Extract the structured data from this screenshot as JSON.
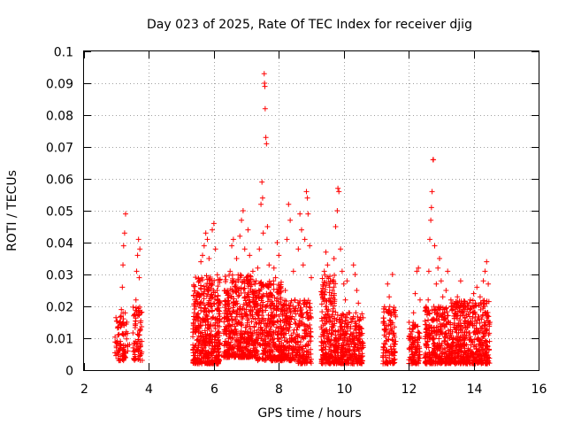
{
  "chart_data": {
    "type": "scatter",
    "title": "Day 023 of 2025, Rate Of TEC Index for receiver djig",
    "xlabel": "GPS time / hours",
    "ylabel": "ROTI / TECUs",
    "xlim": [
      2,
      16
    ],
    "ylim": [
      0,
      0.1
    ],
    "x_ticks": [
      2,
      4,
      6,
      8,
      10,
      12,
      14,
      16
    ],
    "x_tick_labels": [
      "2",
      "4",
      "6",
      "8",
      "10",
      "12",
      "14",
      "16"
    ],
    "y_ticks": [
      0,
      0.01,
      0.02,
      0.03,
      0.04,
      0.05,
      0.06,
      0.07,
      0.08,
      0.09,
      0.1
    ],
    "y_tick_labels": [
      "0",
      "0.01",
      "0.02",
      "0.03",
      "0.04",
      "0.05",
      "0.06",
      "0.07",
      "0.08",
      "0.09",
      "0.1"
    ],
    "grid": true,
    "marker": "+",
    "marker_color": "#ff0000",
    "series": [
      {
        "name": "ROTI",
        "points": [
          [
            3.0,
            0.007
          ],
          [
            3.05,
            0.011
          ],
          [
            3.1,
            0.015
          ],
          [
            3.12,
            0.009
          ],
          [
            3.15,
            0.019
          ],
          [
            3.18,
            0.026
          ],
          [
            3.2,
            0.033
          ],
          [
            3.22,
            0.039
          ],
          [
            3.25,
            0.043
          ],
          [
            3.28,
            0.049
          ],
          [
            3.3,
            0.012
          ],
          [
            3.35,
            0.006
          ],
          [
            3.4,
            0.008
          ],
          [
            3.55,
            0.006
          ],
          [
            3.58,
            0.014
          ],
          [
            3.6,
            0.022
          ],
          [
            3.62,
            0.031
          ],
          [
            3.65,
            0.036
          ],
          [
            3.68,
            0.041
          ],
          [
            3.7,
            0.029
          ],
          [
            3.72,
            0.038
          ],
          [
            3.75,
            0.018
          ],
          [
            3.78,
            0.009
          ],
          [
            5.4,
            0.007
          ],
          [
            5.45,
            0.013
          ],
          [
            5.5,
            0.021
          ],
          [
            5.55,
            0.028
          ],
          [
            5.6,
            0.034
          ],
          [
            5.65,
            0.036
          ],
          [
            5.7,
            0.039
          ],
          [
            5.75,
            0.043
          ],
          [
            5.8,
            0.041
          ],
          [
            5.85,
            0.035
          ],
          [
            5.9,
            0.027
          ],
          [
            5.95,
            0.044
          ],
          [
            6.0,
            0.046
          ],
          [
            6.05,
            0.038
          ],
          [
            6.1,
            0.025
          ],
          [
            6.15,
            0.012
          ],
          [
            6.35,
            0.009
          ],
          [
            6.4,
            0.016
          ],
          [
            6.45,
            0.024
          ],
          [
            6.5,
            0.031
          ],
          [
            6.55,
            0.039
          ],
          [
            6.6,
            0.041
          ],
          [
            6.7,
            0.035
          ],
          [
            6.8,
            0.042
          ],
          [
            6.85,
            0.047
          ],
          [
            6.9,
            0.05
          ],
          [
            6.95,
            0.038
          ],
          [
            7.0,
            0.029
          ],
          [
            7.05,
            0.044
          ],
          [
            7.1,
            0.036
          ],
          [
            7.2,
            0.031
          ],
          [
            7.3,
            0.028
          ],
          [
            7.35,
            0.032
          ],
          [
            7.4,
            0.038
          ],
          [
            7.45,
            0.052
          ],
          [
            7.48,
            0.059
          ],
          [
            7.5,
            0.054
          ],
          [
            7.52,
            0.043
          ],
          [
            7.55,
            0.093
          ],
          [
            7.56,
            0.09
          ],
          [
            7.57,
            0.089
          ],
          [
            7.58,
            0.082
          ],
          [
            7.6,
            0.073
          ],
          [
            7.62,
            0.071
          ],
          [
            7.65,
            0.045
          ],
          [
            7.7,
            0.033
          ],
          [
            7.75,
            0.027
          ],
          [
            7.8,
            0.021
          ],
          [
            7.85,
            0.032
          ],
          [
            7.9,
            0.029
          ],
          [
            7.95,
            0.04
          ],
          [
            8.0,
            0.036
          ],
          [
            8.05,
            0.026
          ],
          [
            8.1,
            0.019
          ],
          [
            8.2,
            0.025
          ],
          [
            8.25,
            0.041
          ],
          [
            8.3,
            0.052
          ],
          [
            8.35,
            0.047
          ],
          [
            8.45,
            0.031
          ],
          [
            8.5,
            0.022
          ],
          [
            8.6,
            0.038
          ],
          [
            8.65,
            0.049
          ],
          [
            8.7,
            0.044
          ],
          [
            8.75,
            0.033
          ],
          [
            8.8,
            0.041
          ],
          [
            8.85,
            0.056
          ],
          [
            8.88,
            0.054
          ],
          [
            8.9,
            0.049
          ],
          [
            8.95,
            0.039
          ],
          [
            9.0,
            0.029
          ],
          [
            9.35,
            0.023
          ],
          [
            9.4,
            0.031
          ],
          [
            9.45,
            0.037
          ],
          [
            9.5,
            0.033
          ],
          [
            9.55,
            0.027
          ],
          [
            9.65,
            0.025
          ],
          [
            9.7,
            0.035
          ],
          [
            9.75,
            0.045
          ],
          [
            9.8,
            0.05
          ],
          [
            9.82,
            0.057
          ],
          [
            9.85,
            0.056
          ],
          [
            9.9,
            0.038
          ],
          [
            9.95,
            0.031
          ],
          [
            10.0,
            0.027
          ],
          [
            10.05,
            0.022
          ],
          [
            10.1,
            0.028
          ],
          [
            10.15,
            0.018
          ],
          [
            10.2,
            0.013
          ],
          [
            10.3,
            0.033
          ],
          [
            10.35,
            0.03
          ],
          [
            10.4,
            0.025
          ],
          [
            10.45,
            0.021
          ],
          [
            10.5,
            0.016
          ],
          [
            10.55,
            0.013
          ],
          [
            11.25,
            0.011
          ],
          [
            11.3,
            0.019
          ],
          [
            11.35,
            0.027
          ],
          [
            11.4,
            0.023
          ],
          [
            11.45,
            0.015
          ],
          [
            11.5,
            0.03
          ],
          [
            11.55,
            0.018
          ],
          [
            11.6,
            0.009
          ],
          [
            12.05,
            0.007
          ],
          [
            12.1,
            0.012
          ],
          [
            12.15,
            0.018
          ],
          [
            12.2,
            0.024
          ],
          [
            12.25,
            0.031
          ],
          [
            12.3,
            0.032
          ],
          [
            12.35,
            0.022
          ],
          [
            12.55,
            0.013
          ],
          [
            12.6,
            0.022
          ],
          [
            12.62,
            0.031
          ],
          [
            12.65,
            0.041
          ],
          [
            12.68,
            0.047
          ],
          [
            12.7,
            0.051
          ],
          [
            12.72,
            0.056
          ],
          [
            12.75,
            0.066
          ],
          [
            12.76,
            0.066
          ],
          [
            12.8,
            0.039
          ],
          [
            12.85,
            0.027
          ],
          [
            12.9,
            0.032
          ],
          [
            12.95,
            0.035
          ],
          [
            13.0,
            0.028
          ],
          [
            13.05,
            0.023
          ],
          [
            13.1,
            0.018
          ],
          [
            13.15,
            0.025
          ],
          [
            13.2,
            0.031
          ],
          [
            13.3,
            0.022
          ],
          [
            13.4,
            0.017
          ],
          [
            13.5,
            0.023
          ],
          [
            13.6,
            0.028
          ],
          [
            13.7,
            0.02
          ],
          [
            13.8,
            0.019
          ],
          [
            13.9,
            0.022
          ],
          [
            14.0,
            0.024
          ],
          [
            14.05,
            0.021
          ],
          [
            14.1,
            0.026
          ],
          [
            14.2,
            0.023
          ],
          [
            14.3,
            0.028
          ],
          [
            14.35,
            0.031
          ],
          [
            14.4,
            0.034
          ],
          [
            14.45,
            0.027
          ],
          [
            14.5,
            0.015
          ]
        ]
      }
    ],
    "dense_bands": [
      {
        "x_start": 2.95,
        "x_end": 3.35,
        "y_min": 0.003,
        "y_max": 0.018,
        "count": 80
      },
      {
        "x_start": 3.5,
        "x_end": 3.8,
        "y_min": 0.003,
        "y_max": 0.02,
        "count": 70
      },
      {
        "x_start": 5.35,
        "x_end": 6.2,
        "y_min": 0.002,
        "y_max": 0.03,
        "count": 450
      },
      {
        "x_start": 6.3,
        "x_end": 7.3,
        "y_min": 0.004,
        "y_max": 0.03,
        "count": 480
      },
      {
        "x_start": 7.3,
        "x_end": 8.1,
        "y_min": 0.003,
        "y_max": 0.028,
        "count": 360
      },
      {
        "x_start": 8.1,
        "x_end": 8.55,
        "y_min": 0.003,
        "y_max": 0.022,
        "count": 160
      },
      {
        "x_start": 8.55,
        "x_end": 9.0,
        "y_min": 0.002,
        "y_max": 0.022,
        "count": 160
      },
      {
        "x_start": 9.3,
        "x_end": 9.75,
        "y_min": 0.002,
        "y_max": 0.03,
        "count": 220
      },
      {
        "x_start": 9.75,
        "x_end": 10.6,
        "y_min": 0.002,
        "y_max": 0.018,
        "count": 300
      },
      {
        "x_start": 11.2,
        "x_end": 11.6,
        "y_min": 0.002,
        "y_max": 0.02,
        "count": 120
      },
      {
        "x_start": 12.0,
        "x_end": 12.35,
        "y_min": 0.002,
        "y_max": 0.015,
        "count": 100
      },
      {
        "x_start": 12.5,
        "x_end": 13.3,
        "y_min": 0.002,
        "y_max": 0.02,
        "count": 320
      },
      {
        "x_start": 13.3,
        "x_end": 14.5,
        "y_min": 0.002,
        "y_max": 0.022,
        "count": 500
      }
    ]
  }
}
